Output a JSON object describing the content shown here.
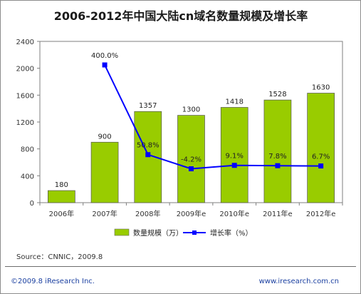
{
  "chart_data": {
    "type": "bar",
    "title": "2006-2012年中国大陆cn域名数量规模及增长率",
    "categories": [
      "2006年",
      "2007年",
      "2008年",
      "2009年e",
      "2010年e",
      "2011年e",
      "2012年e"
    ],
    "series": [
      {
        "name": "数量规模（万）",
        "type": "bar",
        "color": "#99cc00",
        "values": [
          180,
          900,
          1357,
          1300,
          1418,
          1528,
          1630
        ],
        "labels": [
          "180",
          "900",
          "1357",
          "1300",
          "1418",
          "1528",
          "1630"
        ]
      },
      {
        "name": "增长率（%）",
        "type": "line",
        "color": "#0000ff",
        "values": [
          null,
          400.0,
          50.8,
          -4.2,
          9.1,
          7.8,
          6.7
        ],
        "labels": [
          "",
          "400.0%",
          "50.8%",
          "-4.2%",
          "9.1%",
          "7.8%",
          "6.7%"
        ]
      }
    ],
    "ylim": [
      0,
      2400
    ],
    "yticks": [
      0,
      400,
      800,
      1200,
      1600,
      2000,
      2400
    ],
    "ytick_labels": [
      "0",
      "400",
      "800",
      "1200",
      "1600",
      "2000",
      "2400"
    ],
    "xlabel": "",
    "ylabel": "",
    "legend_position": "bottom",
    "grid": false
  },
  "source_text": "Source：CNNIC，2009.8",
  "footer_left": "©2009.8 iResearch Inc.",
  "footer_right": "www.iresearch.com.cn"
}
